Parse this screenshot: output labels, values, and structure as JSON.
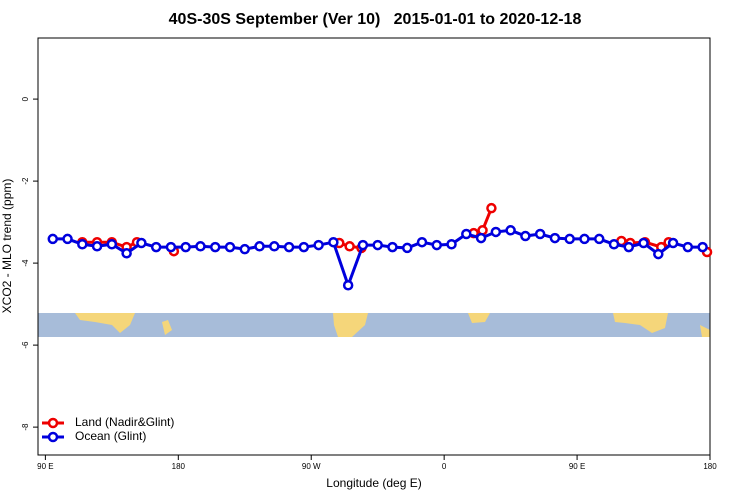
{
  "chart_data": {
    "type": "line",
    "title": "40S-30S September (Ver 10)   2015-01-01 to 2020-12-18",
    "x_label": "Longitude (deg E)",
    "y_label": "XCO2 - MLO trend (ppm)",
    "xlim": [
      85,
      540
    ],
    "xticks": [
      {
        "value": 90,
        "label": "90 E"
      },
      {
        "value": 180,
        "label": "180"
      },
      {
        "value": 270,
        "label": "90 W"
      },
      {
        "value": 360,
        "label": "0"
      },
      {
        "value": 450,
        "label": "90 E"
      },
      {
        "value": 540,
        "label": "180"
      }
    ],
    "ylim": [
      -8.68,
      1.49
    ],
    "yticks": [
      0,
      -2,
      -4,
      -6,
      -8
    ],
    "legend": "bottom-left",
    "series": [
      {
        "name": "Land (Nadir&Glint)",
        "color": "#ee0000",
        "x": [
          115,
          125,
          135,
          145,
          152,
          null,
          177,
          null,
          289,
          296,
          304,
          null,
          380,
          386,
          392,
          null,
          480,
          486,
          496,
          507,
          512,
          null,
          538
        ],
        "values": [
          -3.49,
          -3.49,
          -3.49,
          -3.61,
          -3.49,
          null,
          -3.71,
          null,
          -3.51,
          -3.59,
          -3.63,
          null,
          -3.27,
          -3.2,
          -2.66,
          null,
          -3.46,
          -3.51,
          -3.49,
          -3.61,
          -3.49,
          null,
          -3.73
        ]
      },
      {
        "name": "Ocean (Glint)",
        "color": "#0000dd",
        "x": [
          95,
          105,
          115,
          125,
          135,
          145,
          155,
          165,
          175,
          185,
          195,
          205,
          215,
          225,
          235,
          245,
          255,
          265,
          275,
          285,
          295,
          305,
          315,
          325,
          335,
          345,
          355,
          365,
          375,
          385,
          395,
          405,
          415,
          425,
          435,
          445,
          455,
          465,
          475,
          485,
          495,
          505,
          515,
          525,
          535
        ],
        "values": [
          -3.41,
          -3.41,
          -3.54,
          -3.59,
          -3.54,
          -3.76,
          -3.51,
          -3.61,
          -3.61,
          -3.61,
          -3.59,
          -3.61,
          -3.61,
          -3.66,
          -3.59,
          -3.59,
          -3.61,
          -3.61,
          -3.56,
          -3.49,
          -4.54,
          -3.56,
          -3.56,
          -3.61,
          -3.63,
          -3.49,
          -3.56,
          -3.54,
          -3.29,
          -3.39,
          -3.24,
          -3.2,
          -3.34,
          -3.29,
          -3.39,
          -3.41,
          -3.41,
          -3.41,
          -3.54,
          -3.61,
          -3.51,
          -3.78,
          -3.51,
          -3.61,
          -3.61
        ]
      }
    ]
  }
}
